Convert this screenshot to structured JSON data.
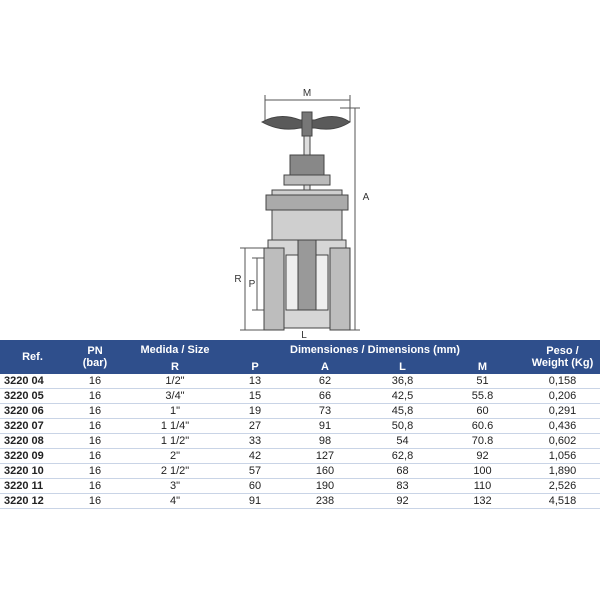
{
  "drawing": {
    "labels": {
      "m": "M",
      "a": "A",
      "r": "R",
      "p": "P",
      "l": "L"
    }
  },
  "table": {
    "header": {
      "ref": "Ref.",
      "pn": [
        "PN",
        "(bar)"
      ],
      "size": "Medida / Size",
      "dimensions": "Dimensiones / Dimensions (mm)",
      "weight": [
        "Peso /",
        "Weight (Kg)"
      ]
    },
    "subheader": [
      "R",
      "P",
      "A",
      "L",
      "M"
    ],
    "rows": [
      [
        "3220 04",
        "16",
        "1/2\"",
        "13",
        "62",
        "36,8",
        "51",
        "0,158"
      ],
      [
        "3220 05",
        "16",
        "3/4\"",
        "15",
        "66",
        "42,5",
        "55.8",
        "0,206"
      ],
      [
        "3220 06",
        "16",
        "1\"",
        "19",
        "73",
        "45,8",
        "60",
        "0,291"
      ],
      [
        "3220 07",
        "16",
        "1 1/4\"",
        "27",
        "91",
        "50,8",
        "60.6",
        "0,436"
      ],
      [
        "3220 08",
        "16",
        "1 1/2\"",
        "33",
        "98",
        "54",
        "70.8",
        "0,602"
      ],
      [
        "3220 09",
        "16",
        "2\"",
        "42",
        "127",
        "62,8",
        "92",
        "1,056"
      ],
      [
        "3220 10",
        "16",
        "2 1/2\"",
        "57",
        "160",
        "68",
        "100",
        "1,890"
      ],
      [
        "3220 11",
        "16",
        "3\"",
        "60",
        "190",
        "83",
        "110",
        "2,526"
      ],
      [
        "3220 12",
        "16",
        "4\"",
        "91",
        "238",
        "92",
        "132",
        "4,518"
      ]
    ]
  }
}
